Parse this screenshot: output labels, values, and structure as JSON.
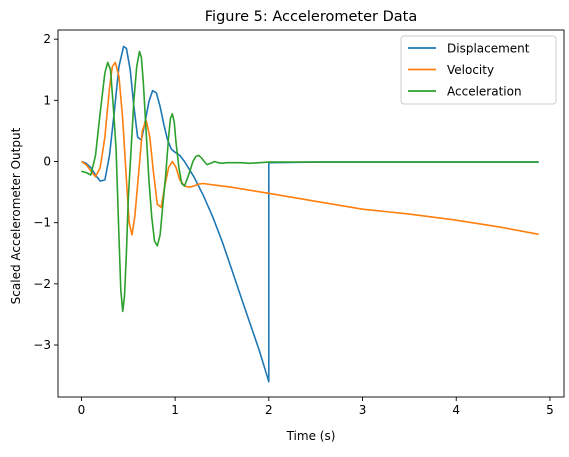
{
  "chart_data": {
    "type": "line",
    "title": "Figure 5: Accelerometer Data",
    "xlabel": "Time (s)",
    "ylabel": "Scaled Accelerometer Output",
    "xlim": [
      -0.25,
      5.15
    ],
    "ylim": [
      -3.85,
      2.15
    ],
    "xticks": [
      0,
      1,
      2,
      3,
      4,
      5
    ],
    "xtick_labels": [
      "0",
      "1",
      "2",
      "3",
      "4",
      "5"
    ],
    "yticks": [
      -3,
      -2,
      -1,
      0,
      1,
      2
    ],
    "ytick_labels": [
      "−3",
      "−2",
      "−1",
      "0",
      "1",
      "2"
    ],
    "grid": false,
    "legend_position": "top-right",
    "series": [
      {
        "name": "Displacement",
        "color": "#1f77b4",
        "x": [
          0.0,
          0.05,
          0.1,
          0.15,
          0.2,
          0.25,
          0.3,
          0.35,
          0.4,
          0.45,
          0.48,
          0.52,
          0.56,
          0.6,
          0.64,
          0.68,
          0.72,
          0.76,
          0.8,
          0.84,
          0.88,
          0.92,
          0.96,
          1.0,
          1.05,
          1.1,
          1.2,
          1.3,
          1.4,
          1.5,
          1.6,
          1.7,
          1.8,
          1.9,
          2.0,
          2.0,
          2.0,
          2.5,
          3.0,
          3.5,
          4.0,
          4.5,
          4.88
        ],
        "y": [
          0.0,
          -0.03,
          -0.1,
          -0.22,
          -0.32,
          -0.3,
          0.1,
          0.8,
          1.55,
          1.88,
          1.85,
          1.5,
          0.9,
          0.4,
          0.35,
          0.65,
          0.98,
          1.16,
          1.12,
          0.9,
          0.6,
          0.35,
          0.2,
          0.15,
          0.1,
          0.0,
          -0.25,
          -0.55,
          -0.9,
          -1.3,
          -1.75,
          -2.2,
          -2.65,
          -3.1,
          -3.6,
          -0.02,
          -0.02,
          -0.01,
          -0.01,
          -0.01,
          -0.01,
          -0.01,
          -0.01
        ]
      },
      {
        "name": "Velocity",
        "color": "#ff7f0e",
        "x": [
          0.0,
          0.05,
          0.1,
          0.15,
          0.2,
          0.25,
          0.3,
          0.33,
          0.36,
          0.4,
          0.44,
          0.48,
          0.51,
          0.54,
          0.57,
          0.61,
          0.65,
          0.69,
          0.73,
          0.77,
          0.81,
          0.85,
          0.89,
          0.93,
          0.97,
          1.01,
          1.05,
          1.1,
          1.15,
          1.2,
          1.25,
          1.3,
          1.4,
          1.6,
          2.0,
          2.5,
          3.0,
          3.5,
          4.0,
          4.5,
          4.88
        ],
        "y": [
          0.0,
          -0.05,
          -0.15,
          -0.25,
          -0.1,
          0.4,
          1.2,
          1.55,
          1.62,
          1.4,
          0.7,
          -0.3,
          -1.0,
          -1.2,
          -0.9,
          -0.2,
          0.5,
          0.68,
          0.4,
          -0.2,
          -0.7,
          -0.75,
          -0.4,
          -0.1,
          0.0,
          -0.1,
          -0.3,
          -0.4,
          -0.42,
          -0.4,
          -0.37,
          -0.36,
          -0.38,
          -0.42,
          -0.52,
          -0.65,
          -0.78,
          -0.86,
          -0.96,
          -1.08,
          -1.19
        ]
      },
      {
        "name": "Acceleration",
        "color": "#2ca02c",
        "x": [
          0.0,
          0.05,
          0.1,
          0.15,
          0.2,
          0.25,
          0.28,
          0.31,
          0.34,
          0.37,
          0.4,
          0.42,
          0.44,
          0.46,
          0.48,
          0.5,
          0.53,
          0.56,
          0.59,
          0.62,
          0.64,
          0.66,
          0.69,
          0.72,
          0.75,
          0.78,
          0.81,
          0.84,
          0.87,
          0.9,
          0.93,
          0.95,
          0.97,
          0.99,
          1.01,
          1.04,
          1.07,
          1.1,
          1.13,
          1.16,
          1.19,
          1.22,
          1.25,
          1.28,
          1.31,
          1.34,
          1.38,
          1.42,
          1.46,
          1.5,
          1.55,
          1.6,
          1.7,
          1.8,
          1.9,
          2.0,
          2.5,
          3.0,
          3.5,
          4.0,
          4.5,
          4.88
        ],
        "y": [
          -0.16,
          -0.18,
          -0.22,
          0.1,
          0.8,
          1.45,
          1.62,
          1.5,
          0.9,
          0.2,
          -1.2,
          -2.1,
          -2.45,
          -2.2,
          -1.5,
          -0.6,
          0.2,
          1.0,
          1.55,
          1.8,
          1.7,
          1.3,
          0.5,
          -0.3,
          -0.9,
          -1.3,
          -1.38,
          -1.2,
          -0.7,
          -0.2,
          0.4,
          0.7,
          0.78,
          0.65,
          0.3,
          -0.1,
          -0.36,
          -0.4,
          -0.28,
          -0.15,
          0.0,
          0.08,
          0.1,
          0.06,
          0.0,
          -0.05,
          -0.03,
          0.0,
          -0.02,
          -0.03,
          -0.02,
          -0.02,
          -0.02,
          -0.03,
          -0.02,
          -0.01,
          -0.01,
          -0.01,
          -0.01,
          -0.01,
          -0.01,
          -0.01
        ]
      }
    ]
  }
}
